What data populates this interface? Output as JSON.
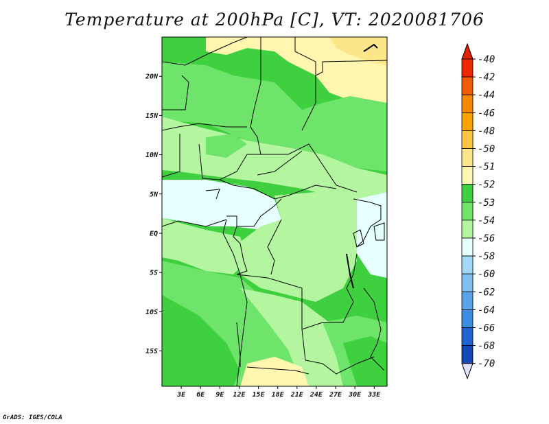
{
  "title": "Temperature at 200hPa [C], VT: 2020081706",
  "credit": "GrADS: IGES/COLA",
  "map": {
    "lat_range": [
      -19.5,
      25
    ],
    "lon_range": [
      0,
      35
    ],
    "lat_ticks": [
      {
        "value": 20,
        "label": "20N"
      },
      {
        "value": 15,
        "label": "15N"
      },
      {
        "value": 10,
        "label": "10N"
      },
      {
        "value": 5,
        "label": "5N"
      },
      {
        "value": 0,
        "label": "EQ"
      },
      {
        "value": -5,
        "label": "5S"
      },
      {
        "value": -10,
        "label": "10S"
      },
      {
        "value": -15,
        "label": "15S"
      }
    ],
    "lon_ticks": [
      {
        "value": 3,
        "label": "3E"
      },
      {
        "value": 6,
        "label": "6E"
      },
      {
        "value": 9,
        "label": "9E"
      },
      {
        "value": 12,
        "label": "12E"
      },
      {
        "value": 15,
        "label": "15E"
      },
      {
        "value": 18,
        "label": "18E"
      },
      {
        "value": 21,
        "label": "21E"
      },
      {
        "value": 24,
        "label": "24E"
      },
      {
        "value": 27,
        "label": "27E"
      },
      {
        "value": 30,
        "label": "30E"
      },
      {
        "value": 33,
        "label": "33E"
      }
    ]
  },
  "colorbar": {
    "levels": [
      {
        "label": "-40",
        "color": "#f02800"
      },
      {
        "label": "-42",
        "color": "#f35a00"
      },
      {
        "label": "-44",
        "color": "#f78600"
      },
      {
        "label": "-46",
        "color": "#faa200"
      },
      {
        "label": "-48",
        "color": "#fbc441"
      },
      {
        "label": "-50",
        "color": "#fde68a"
      },
      {
        "label": "-51",
        "color": "#fff6b0"
      },
      {
        "label": "-52",
        "color": "#3fd03f"
      },
      {
        "label": "-53",
        "color": "#6ee46a"
      },
      {
        "label": "-54",
        "color": "#b4f5a0"
      },
      {
        "label": "-56",
        "color": "#e6ffff"
      },
      {
        "label": "-58",
        "color": "#a0d8f6"
      },
      {
        "label": "-60",
        "color": "#80bef0"
      },
      {
        "label": "-62",
        "color": "#5aa4ea"
      },
      {
        "label": "-64",
        "color": "#3c8ce2"
      },
      {
        "label": "-66",
        "color": "#2064d4"
      },
      {
        "label": "-68",
        "color": "#1448b4"
      },
      {
        "label": "-70",
        "color": "#0a2888"
      }
    ],
    "top_cap_color": "#e02000",
    "bottom_cap_color": "#e0e0ff"
  },
  "colors": {
    "land_dark_green": "#3fd03f",
    "green": "#6ee46a",
    "light_green": "#b4f5a0",
    "cyan": "#e6ffff",
    "yellow": "#fff6b0",
    "orange_yellow": "#fde68a"
  }
}
